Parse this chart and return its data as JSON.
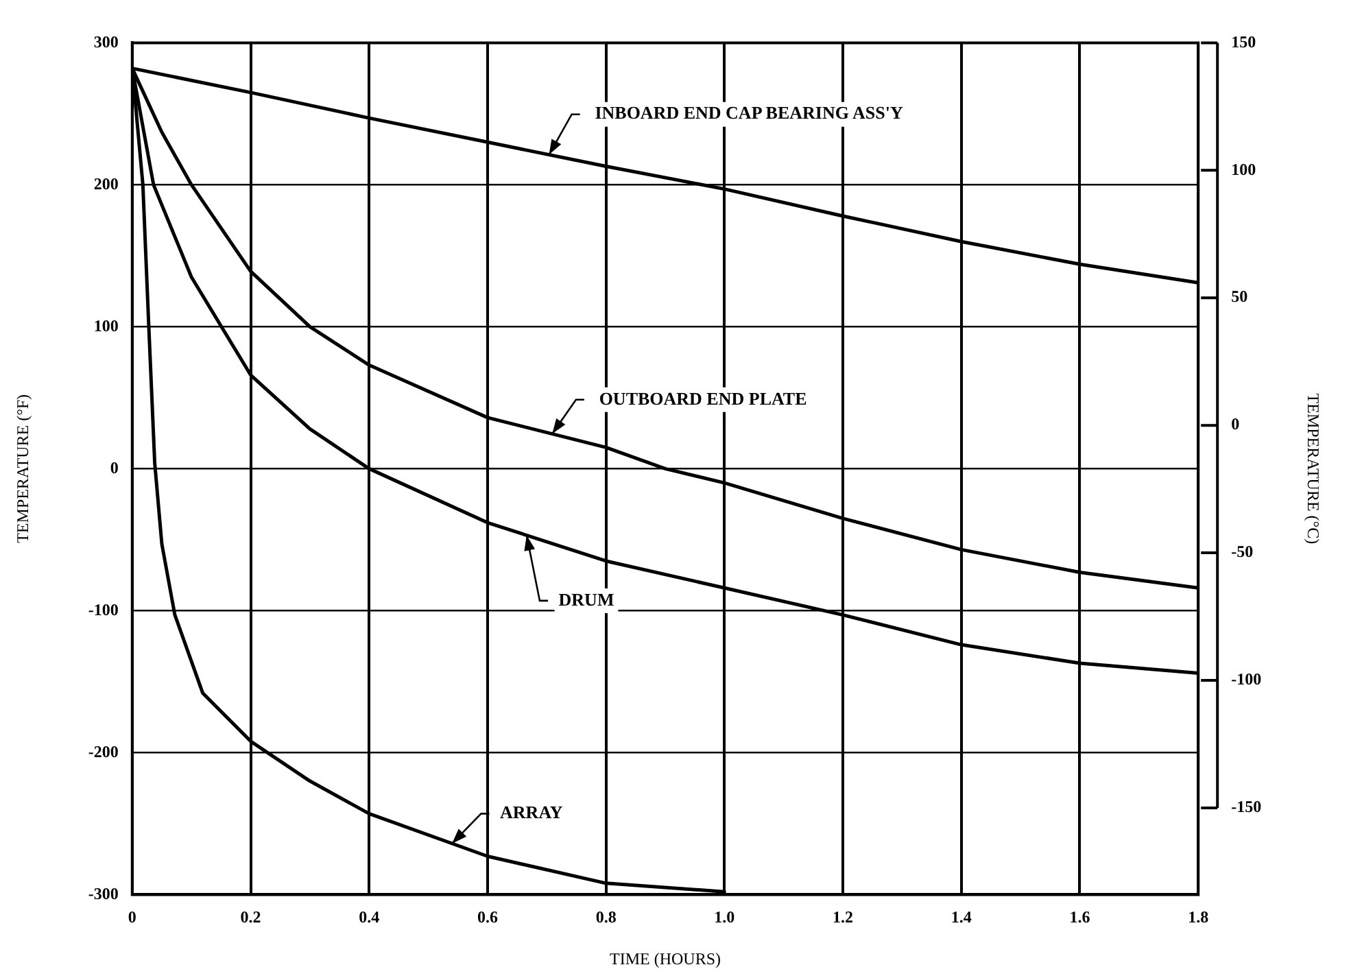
{
  "chart_data": {
    "type": "line",
    "xlabel": "TIME (HOURS)",
    "ylabel": "TEMPERATURE (°F)",
    "y2label": "TEMPERATURE (°C)",
    "xlim": [
      0,
      1.8
    ],
    "xticks": [
      0,
      {
        "value": 0.2,
        "label": "0.2"
      },
      {
        "value": 0.4,
        "label": "0.4"
      },
      {
        "value": 0.6,
        "label": "0.6"
      },
      {
        "value": 0.8,
        "label": "0.8"
      },
      {
        "value": 1,
        "label": "1.0"
      },
      {
        "value": 1.2,
        "label": "1.2"
      },
      {
        "value": 1.4,
        "label": "1.4"
      },
      {
        "value": 1.6,
        "label": "1.6"
      },
      {
        "value": 1.8,
        "label": "1.8"
      }
    ],
    "ylim": [
      -300,
      300
    ],
    "yticks": [
      -300,
      -200,
      -100,
      0,
      100,
      200,
      300
    ],
    "y2lim": [
      -184,
      150
    ],
    "y2ticks": [
      -150,
      -100,
      -50,
      0,
      50,
      100,
      150
    ],
    "grid": true,
    "legend": false,
    "marker": "none",
    "line_style": "solid",
    "series": [
      {
        "name": "INBOARD END CAP BEARING ASS'Y",
        "color": "#000000",
        "x": [
          0,
          0.2,
          0.4,
          0.6,
          0.8,
          1.0,
          1.2,
          1.4,
          1.6,
          1.8
        ],
        "values": [
          282,
          265,
          247,
          230,
          213,
          197,
          178,
          160,
          144,
          131
        ]
      },
      {
        "name": "OUTBOARD END PLATE",
        "color": "#000000",
        "x": [
          0,
          0.05,
          0.1,
          0.2,
          0.3,
          0.4,
          0.6,
          0.8,
          0.9,
          1.0,
          1.2,
          1.4,
          1.6,
          1.8
        ],
        "values": [
          282,
          237,
          200,
          139,
          100,
          73,
          36,
          15,
          0,
          -10,
          -35,
          -57,
          -73,
          -84
        ]
      },
      {
        "name": "DRUM",
        "color": "#000000",
        "x": [
          0,
          0.036,
          0.1,
          0.2,
          0.3,
          0.4,
          0.6,
          0.8,
          1.0,
          1.2,
          1.4,
          1.6,
          1.8
        ],
        "values": [
          282,
          200,
          135,
          66,
          28,
          0,
          -38,
          -65,
          -84,
          -103,
          -124,
          -137,
          -144
        ]
      },
      {
        "name": "ARRAY",
        "color": "#000000",
        "x": [
          0,
          0.018,
          0.028,
          0.038,
          0.05,
          0.072,
          0.119,
          0.2,
          0.3,
          0.4,
          0.6,
          0.8,
          1.0
        ],
        "values": [
          282,
          200,
          100,
          4,
          -53,
          -103,
          -158,
          -192,
          -220,
          -243,
          -273,
          -292,
          -298
        ]
      }
    ]
  }
}
